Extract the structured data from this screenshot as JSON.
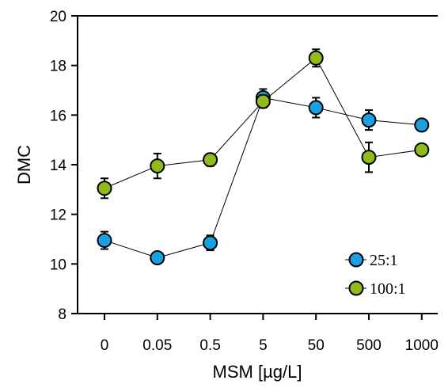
{
  "chart_data": {
    "type": "line",
    "title": "",
    "xlabel": "MSM [µg/L]",
    "ylabel": "DMC",
    "categories": [
      "0",
      "0.05",
      "0.5",
      "5",
      "50",
      "500",
      "1000"
    ],
    "ylim": [
      8,
      20
    ],
    "yticks": [
      "8",
      "10",
      "12",
      "14",
      "16",
      "18",
      "20"
    ],
    "grid": false,
    "legend_position": "bottom-right",
    "series": [
      {
        "name": "25:1",
        "color": "#1ba1e2",
        "values": [
          10.95,
          10.25,
          10.85,
          16.7,
          16.3,
          15.8,
          15.6
        ],
        "errors": [
          0.35,
          0.15,
          0.3,
          0.35,
          0.4,
          0.4,
          0.15
        ]
      },
      {
        "name": "100:1",
        "color": "#8fbc1c",
        "values": [
          13.05,
          13.95,
          14.2,
          16.55,
          18.3,
          14.3,
          14.6
        ],
        "errors": [
          0.4,
          0.5,
          0.25,
          0.25,
          0.35,
          0.6,
          0.15
        ]
      }
    ]
  }
}
